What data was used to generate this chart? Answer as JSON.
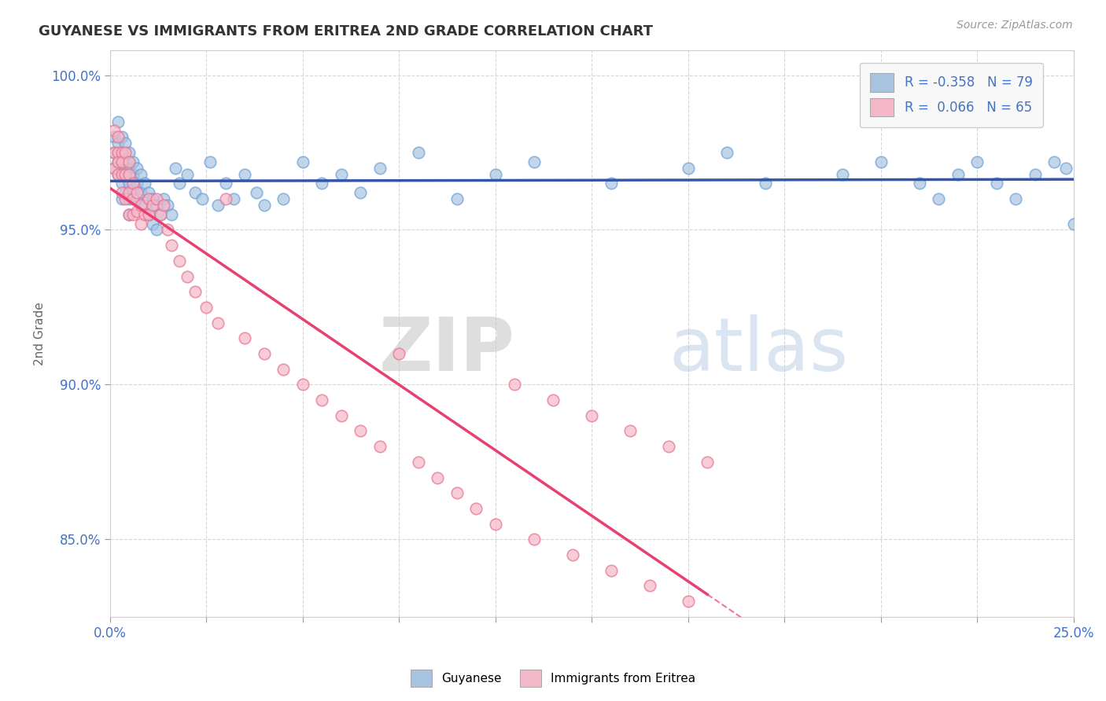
{
  "title": "GUYANESE VS IMMIGRANTS FROM ERITREA 2ND GRADE CORRELATION CHART",
  "source_text": "Source: ZipAtlas.com",
  "ylabel": "2nd Grade",
  "xlim": [
    0.0,
    0.25
  ],
  "ylim": [
    0.825,
    1.008
  ],
  "xticks": [
    0.0,
    0.025,
    0.05,
    0.075,
    0.1,
    0.125,
    0.15,
    0.175,
    0.2,
    0.225,
    0.25
  ],
  "xticklabels": [
    "0.0%",
    "",
    "",
    "",
    "",
    "",
    "",
    "",
    "",
    "",
    "25.0%"
  ],
  "yticks": [
    0.85,
    0.9,
    0.95,
    1.0
  ],
  "yticklabels": [
    "85.0%",
    "90.0%",
    "95.0%",
    "100.0%"
  ],
  "blue_R": -0.358,
  "blue_N": 79,
  "pink_R": 0.066,
  "pink_N": 65,
  "blue_color": "#a8c4e0",
  "blue_edge_color": "#6a9fd8",
  "pink_color": "#f5b8c8",
  "pink_edge_color": "#e87090",
  "blue_line_color": "#3355aa",
  "pink_line_color": "#e84070",
  "legend_label_blue": "Guyanese",
  "legend_label_pink": "Immigrants from Eritrea",
  "watermark_zip": "ZIP",
  "watermark_atlas": "atlas",
  "blue_scatter_x": [
    0.001,
    0.001,
    0.001,
    0.002,
    0.002,
    0.002,
    0.002,
    0.003,
    0.003,
    0.003,
    0.003,
    0.003,
    0.004,
    0.004,
    0.004,
    0.004,
    0.005,
    0.005,
    0.005,
    0.005,
    0.005,
    0.006,
    0.006,
    0.006,
    0.007,
    0.007,
    0.007,
    0.008,
    0.008,
    0.009,
    0.009,
    0.01,
    0.01,
    0.011,
    0.011,
    0.012,
    0.012,
    0.013,
    0.014,
    0.015,
    0.016,
    0.017,
    0.018,
    0.02,
    0.022,
    0.024,
    0.026,
    0.028,
    0.03,
    0.032,
    0.035,
    0.038,
    0.04,
    0.045,
    0.05,
    0.055,
    0.06,
    0.065,
    0.07,
    0.08,
    0.09,
    0.1,
    0.11,
    0.13,
    0.15,
    0.16,
    0.17,
    0.19,
    0.2,
    0.21,
    0.215,
    0.22,
    0.225,
    0.23,
    0.235,
    0.24,
    0.245,
    0.248,
    0.25
  ],
  "blue_scatter_y": [
    0.98,
    0.975,
    0.97,
    0.985,
    0.978,
    0.972,
    0.968,
    0.98,
    0.975,
    0.97,
    0.965,
    0.96,
    0.978,
    0.972,
    0.968,
    0.962,
    0.975,
    0.97,
    0.965,
    0.96,
    0.955,
    0.972,
    0.968,
    0.963,
    0.97,
    0.965,
    0.96,
    0.968,
    0.962,
    0.965,
    0.958,
    0.962,
    0.955,
    0.96,
    0.952,
    0.958,
    0.95,
    0.955,
    0.96,
    0.958,
    0.955,
    0.97,
    0.965,
    0.968,
    0.962,
    0.96,
    0.972,
    0.958,
    0.965,
    0.96,
    0.968,
    0.962,
    0.958,
    0.96,
    0.972,
    0.965,
    0.968,
    0.962,
    0.97,
    0.975,
    0.96,
    0.968,
    0.972,
    0.965,
    0.97,
    0.975,
    0.965,
    0.968,
    0.972,
    0.965,
    0.96,
    0.968,
    0.972,
    0.965,
    0.96,
    0.968,
    0.972,
    0.97,
    0.952
  ],
  "pink_scatter_x": [
    0.001,
    0.001,
    0.001,
    0.002,
    0.002,
    0.002,
    0.002,
    0.003,
    0.003,
    0.003,
    0.003,
    0.004,
    0.004,
    0.004,
    0.005,
    0.005,
    0.005,
    0.005,
    0.006,
    0.006,
    0.006,
    0.007,
    0.007,
    0.008,
    0.008,
    0.009,
    0.01,
    0.01,
    0.011,
    0.012,
    0.013,
    0.014,
    0.015,
    0.016,
    0.018,
    0.02,
    0.022,
    0.025,
    0.028,
    0.03,
    0.035,
    0.04,
    0.045,
    0.05,
    0.055,
    0.06,
    0.065,
    0.07,
    0.075,
    0.08,
    0.085,
    0.09,
    0.095,
    0.1,
    0.105,
    0.11,
    0.115,
    0.12,
    0.125,
    0.13,
    0.135,
    0.14,
    0.145,
    0.15,
    0.155
  ],
  "pink_scatter_y": [
    0.982,
    0.975,
    0.97,
    0.98,
    0.975,
    0.972,
    0.968,
    0.975,
    0.972,
    0.968,
    0.962,
    0.975,
    0.968,
    0.96,
    0.972,
    0.968,
    0.962,
    0.955,
    0.965,
    0.96,
    0.955,
    0.962,
    0.956,
    0.958,
    0.952,
    0.955,
    0.96,
    0.955,
    0.958,
    0.96,
    0.955,
    0.958,
    0.95,
    0.945,
    0.94,
    0.935,
    0.93,
    0.925,
    0.92,
    0.96,
    0.915,
    0.91,
    0.905,
    0.9,
    0.895,
    0.89,
    0.885,
    0.88,
    0.91,
    0.875,
    0.87,
    0.865,
    0.86,
    0.855,
    0.9,
    0.85,
    0.895,
    0.845,
    0.89,
    0.84,
    0.885,
    0.835,
    0.88,
    0.83,
    0.875
  ]
}
